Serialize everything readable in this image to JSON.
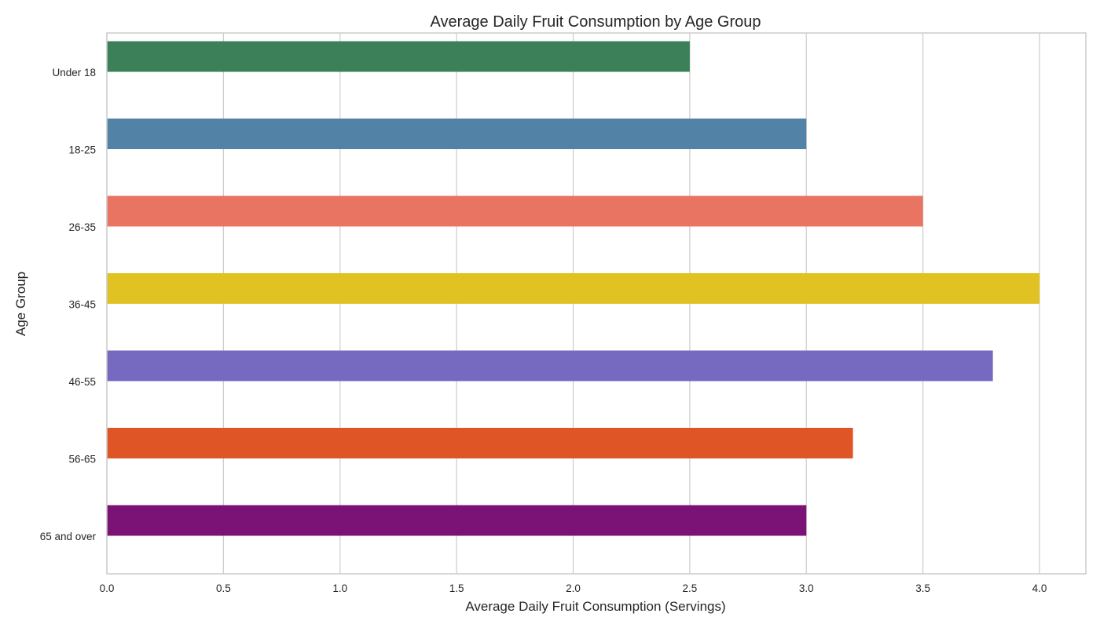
{
  "chart_data": {
    "type": "bar",
    "orientation": "horizontal",
    "title": "Average Daily Fruit Consumption by Age Group",
    "xlabel": "Average Daily Fruit Consumption (Servings)",
    "ylabel": "Age Group",
    "categories": [
      "Under 18",
      "18-25",
      "26-35",
      "36-45",
      "46-55",
      "56-65",
      "65 and over"
    ],
    "values": [
      2.5,
      3.0,
      3.5,
      4.0,
      3.8,
      3.2,
      3.0
    ],
    "colors": [
      "#3b8058",
      "#5283a7",
      "#e87461",
      "#e0c322",
      "#7569c0",
      "#e05525",
      "#7b1276"
    ],
    "xlim": [
      0,
      4.2
    ],
    "xticks": [
      "0.0",
      "0.5",
      "1.0",
      "1.5",
      "2.0",
      "2.5",
      "3.0",
      "3.5",
      "4.0"
    ],
    "grid": "vertical",
    "legend": "none"
  }
}
